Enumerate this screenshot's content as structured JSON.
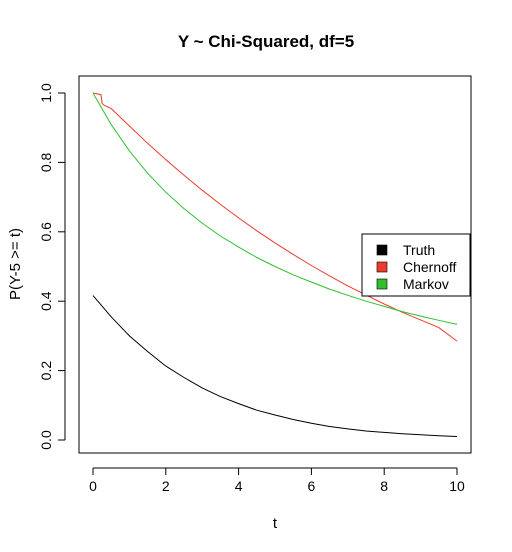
{
  "chart_data": {
    "type": "line",
    "title": "Y ~ Chi-Squared, df=5",
    "xlabel": "t",
    "ylabel": "P(Y-5 >= t)",
    "xlim": [
      0,
      10
    ],
    "ylim": [
      0,
      1
    ],
    "x_ticks": [
      "0",
      "2",
      "4",
      "6",
      "8",
      "10"
    ],
    "y_ticks": [
      "0.0",
      "0.2",
      "0.4",
      "0.6",
      "0.8",
      "1.0"
    ],
    "grid": false,
    "legend_position": "right",
    "series": [
      {
        "name": "Truth",
        "color": "#000000",
        "x": [
          0,
          0.5,
          1,
          1.5,
          2,
          2.5,
          3,
          3.5,
          4,
          4.5,
          5,
          5.5,
          6,
          6.5,
          7,
          7.5,
          8,
          8.5,
          9,
          9.5,
          10
        ],
        "y": [
          0.416,
          0.355,
          0.3,
          0.255,
          0.213,
          0.18,
          0.15,
          0.125,
          0.105,
          0.086,
          0.072,
          0.059,
          0.048,
          0.039,
          0.032,
          0.026,
          0.022,
          0.018,
          0.015,
          0.012,
          0.01
        ]
      },
      {
        "name": "Chernoff",
        "color": "#ef3b2c",
        "x": [
          0,
          0.22,
          0.25,
          0.3,
          0.5,
          1,
          1.5,
          2,
          2.5,
          3,
          3.5,
          4,
          4.5,
          5,
          5.5,
          6,
          6.5,
          7,
          7.5,
          8,
          8.5,
          9,
          9.5,
          10
        ],
        "y": [
          1.0,
          0.995,
          0.97,
          0.965,
          0.955,
          0.905,
          0.855,
          0.808,
          0.763,
          0.72,
          0.679,
          0.64,
          0.603,
          0.568,
          0.535,
          0.503,
          0.473,
          0.444,
          0.418,
          0.392,
          0.368,
          0.346,
          0.324,
          0.285
        ]
      },
      {
        "name": "Markov",
        "color": "#2fbf2f",
        "x": [
          0,
          0.5,
          1,
          1.5,
          2,
          2.5,
          3,
          3.5,
          4,
          4.5,
          5,
          5.5,
          6,
          6.5,
          7,
          7.5,
          8,
          8.5,
          9,
          9.5,
          10
        ],
        "y": [
          1.0,
          0.909,
          0.833,
          0.769,
          0.714,
          0.667,
          0.625,
          0.588,
          0.556,
          0.526,
          0.5,
          0.476,
          0.455,
          0.435,
          0.417,
          0.4,
          0.385,
          0.37,
          0.357,
          0.345,
          0.333
        ]
      }
    ]
  }
}
